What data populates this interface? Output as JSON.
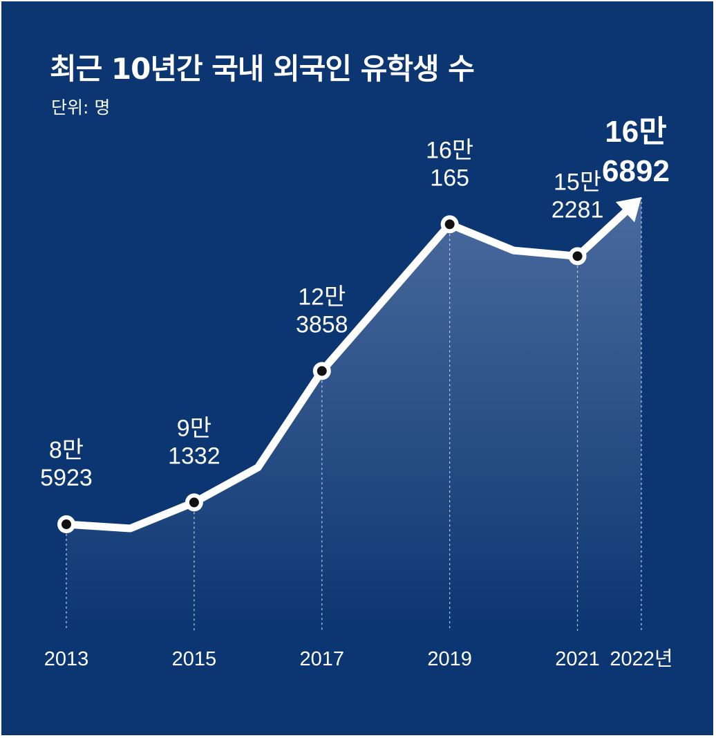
{
  "chart_data": {
    "type": "line",
    "title": "최근 10년간 국내 외국인 유학생 수",
    "subtitle": "단위: 명",
    "x": [
      2013,
      2014,
      2015,
      2016,
      2017,
      2018,
      2019,
      2020,
      2021,
      2022
    ],
    "tick_labels": [
      {
        "x": 2013,
        "text": "2013"
      },
      {
        "x": 2015,
        "text": "2015"
      },
      {
        "x": 2017,
        "text": "2017"
      },
      {
        "x": 2019,
        "text": "2019"
      },
      {
        "x": 2021,
        "text": "2021"
      },
      {
        "x": 2022,
        "text": "2022년"
      }
    ],
    "series": [
      {
        "values": [
          85923,
          84900,
          91332,
          100000,
          123858,
          142000,
          160165,
          153700,
          152281,
          166892
        ]
      }
    ],
    "data_labels": [
      {
        "x": 2013,
        "line1": "8만",
        "line2": "5923",
        "emphasis": false
      },
      {
        "x": 2015,
        "line1": "9만",
        "line2": "1332",
        "emphasis": false
      },
      {
        "x": 2017,
        "line1": "12만",
        "line2": "3858",
        "emphasis": false
      },
      {
        "x": 2019,
        "line1": "16만",
        "line2": "165",
        "emphasis": false
      },
      {
        "x": 2021,
        "line1": "15만",
        "line2": "2281",
        "emphasis": false
      },
      {
        "x": 2022,
        "line1": "16만",
        "line2": "6892",
        "emphasis": true
      }
    ],
    "marked_points": [
      2013,
      2015,
      2017,
      2019,
      2021
    ],
    "end_arrow": true,
    "grid": false,
    "legend": "none",
    "colors": {
      "background": "#0c3671",
      "line": "#ffffff",
      "marker_fill": "#111111",
      "area_top": "#4d6da0",
      "area_bottom": "#0c3671",
      "dashed_guides": "#c9d3e6"
    }
  }
}
